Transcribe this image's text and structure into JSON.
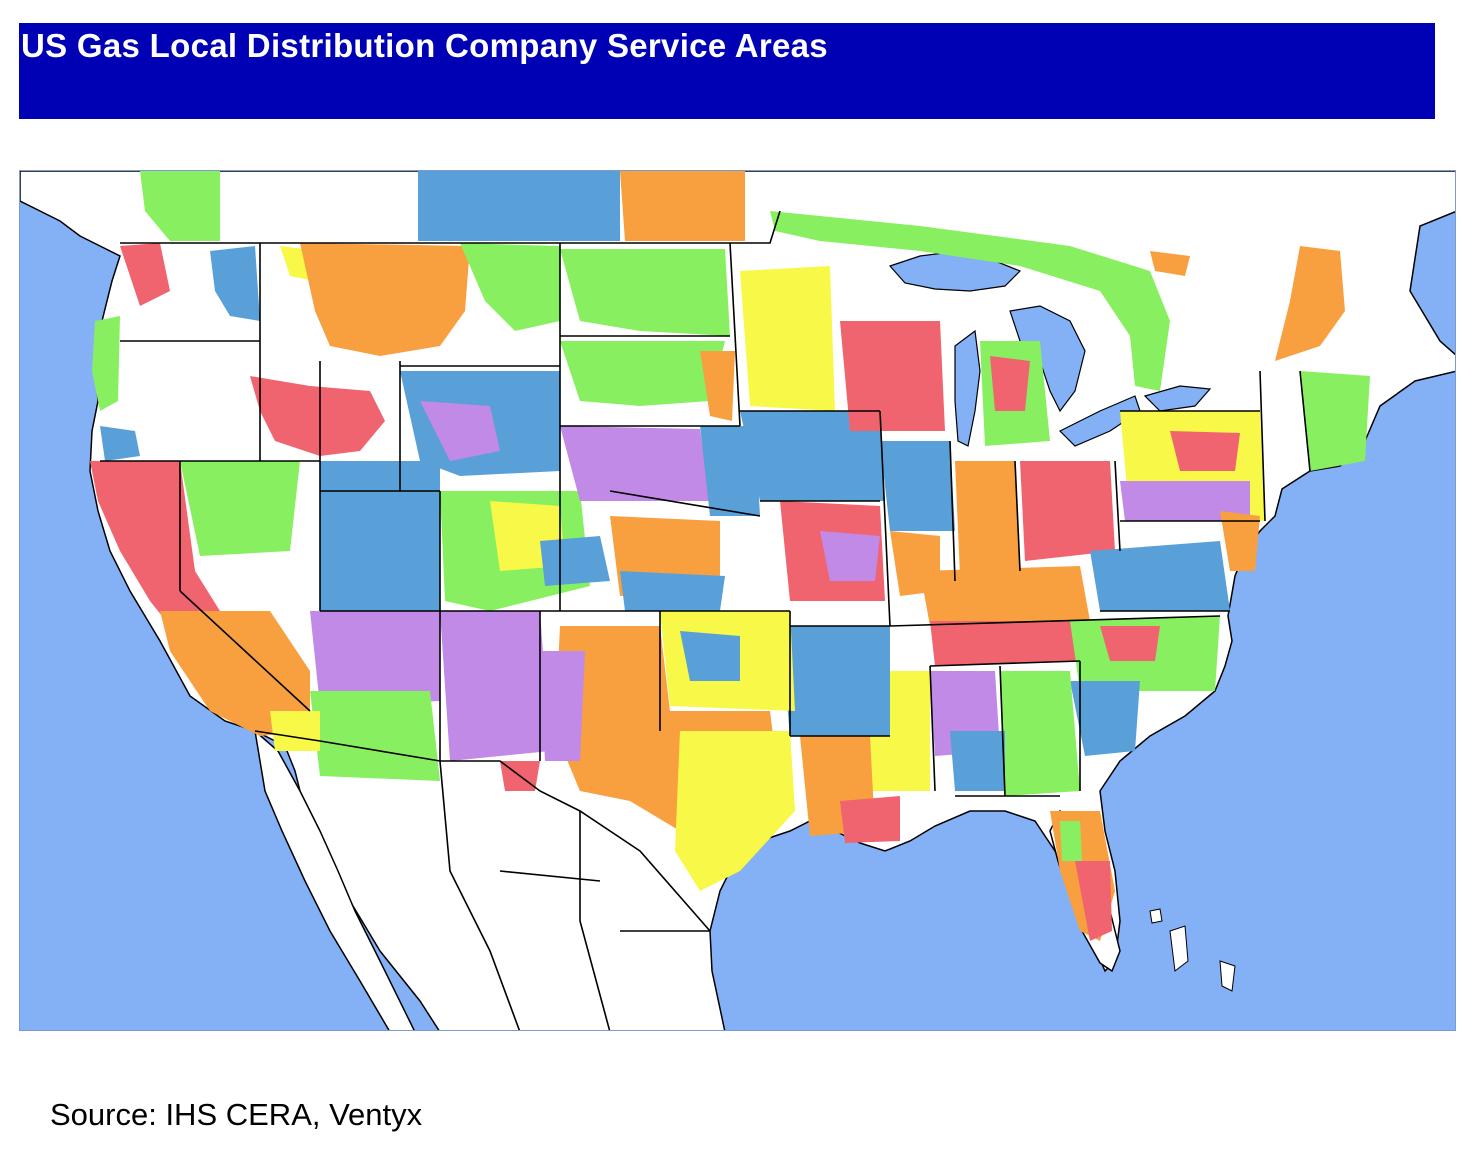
{
  "title": "US Gas Local Distribution Company Service Areas",
  "source": "Source:  IHS CERA, Ventyx",
  "colors": {
    "title_bar": "#0000b4",
    "ocean": "#84b0f6",
    "land": "#ffffff",
    "borders": "#000000",
    "service_area_palette": [
      "#f06470",
      "#f8a040",
      "#f8f848",
      "#88f060",
      "#5aa0d8",
      "#c08ae6"
    ]
  },
  "map": {
    "region": "Contiguous United States with parts of Canada and Mexico",
    "legend": "none"
  }
}
